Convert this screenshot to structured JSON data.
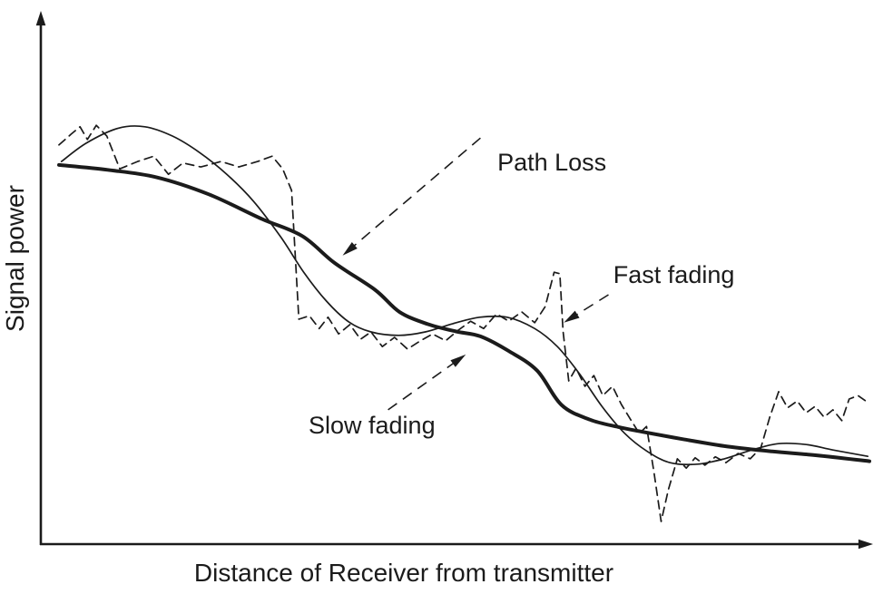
{
  "figure": {
    "background_color": "#ffffff",
    "line_color": "#1b1b1b"
  },
  "chart_data": {
    "type": "line",
    "title": "",
    "xlabel": "Distance of Receiver from transmitter",
    "ylabel": "Signal power",
    "x_range": [
      0,
      100
    ],
    "y_range": [
      0,
      100
    ],
    "axis_note": "conceptual sketch; axes have no tick labels, values estimated on 0-100 arbitrary scale",
    "grid": false,
    "legend": "none (curves identified by dashed-arrow annotations)",
    "line_color": "#1b1b1b",
    "series": [
      {
        "name": "Path Loss",
        "style": "solid",
        "width": "thick",
        "smooth": true,
        "points": [
          [
            0,
            76.5
          ],
          [
            6,
            75.5
          ],
          [
            12,
            74
          ],
          [
            18.5,
            70.5
          ],
          [
            25,
            65.5
          ],
          [
            30,
            62
          ],
          [
            34,
            56.5
          ],
          [
            39,
            51
          ],
          [
            42,
            46.5
          ],
          [
            45.5,
            44
          ],
          [
            49,
            42.5
          ],
          [
            52,
            41.5
          ],
          [
            55.5,
            38.5
          ],
          [
            59,
            34.5
          ],
          [
            62,
            27.5
          ],
          [
            65.5,
            24.5
          ],
          [
            69,
            23
          ],
          [
            72,
            22
          ],
          [
            77,
            20.5
          ],
          [
            82.5,
            19
          ],
          [
            88,
            18
          ],
          [
            93.5,
            17.2
          ],
          [
            100,
            16
          ]
        ]
      },
      {
        "name": "Slow fading",
        "style": "solid",
        "width": "thin",
        "smooth": true,
        "points": [
          [
            0.3,
            77.2
          ],
          [
            3.4,
            81
          ],
          [
            7.3,
            84
          ],
          [
            10.6,
            84.3
          ],
          [
            14,
            82.4
          ],
          [
            17.3,
            79.1
          ],
          [
            20.7,
            74.6
          ],
          [
            24,
            69.1
          ],
          [
            27.4,
            61.7
          ],
          [
            30.2,
            54.6
          ],
          [
            33,
            48.7
          ],
          [
            35.8,
            44.4
          ],
          [
            38.5,
            42.4
          ],
          [
            41.9,
            41.7
          ],
          [
            45.2,
            42.4
          ],
          [
            48.6,
            44.1
          ],
          [
            51.9,
            45.4
          ],
          [
            55.3,
            45.4
          ],
          [
            58.7,
            43.1
          ],
          [
            61.5,
            39.4
          ],
          [
            64.2,
            33.9
          ],
          [
            67,
            27.2
          ],
          [
            69.8,
            21.7
          ],
          [
            72.6,
            18
          ],
          [
            75.4,
            15.7
          ],
          [
            78.8,
            15.4
          ],
          [
            82.1,
            16.5
          ],
          [
            85.5,
            18.3
          ],
          [
            88.8,
            19.6
          ],
          [
            92.2,
            19.4
          ],
          [
            95.5,
            18.3
          ],
          [
            99.8,
            17
          ]
        ]
      },
      {
        "name": "Fast fading",
        "style": "dashed",
        "width": "thin",
        "smooth": false,
        "points": [
          [
            0,
            80.6
          ],
          [
            1.5,
            82.8
          ],
          [
            2.6,
            84.3
          ],
          [
            3.5,
            81.7
          ],
          [
            4.6,
            84.6
          ],
          [
            5.9,
            82.4
          ],
          [
            7.5,
            75.7
          ],
          [
            9.7,
            77.2
          ],
          [
            11.7,
            78.3
          ],
          [
            13.5,
            74.6
          ],
          [
            15.3,
            76.9
          ],
          [
            17.5,
            76.1
          ],
          [
            20,
            77.2
          ],
          [
            22.2,
            76.1
          ],
          [
            24.5,
            77.2
          ],
          [
            26.3,
            78.3
          ],
          [
            27.6,
            75.7
          ],
          [
            28.7,
            71.3
          ],
          [
            29.6,
            45
          ],
          [
            30.9,
            45.7
          ],
          [
            32.1,
            43.1
          ],
          [
            33.2,
            45.4
          ],
          [
            34.5,
            42
          ],
          [
            35.9,
            43.9
          ],
          [
            37.2,
            40.9
          ],
          [
            38.5,
            42.4
          ],
          [
            39.9,
            39.4
          ],
          [
            41.4,
            41.3
          ],
          [
            43,
            38.9
          ],
          [
            44.6,
            40.6
          ],
          [
            46.1,
            42
          ],
          [
            47.7,
            40.6
          ],
          [
            49.3,
            42.8
          ],
          [
            50.8,
            44.6
          ],
          [
            52.4,
            43.1
          ],
          [
            54,
            46.1
          ],
          [
            55.5,
            44.6
          ],
          [
            57.1,
            46.5
          ],
          [
            58.7,
            44.3
          ],
          [
            60,
            47.6
          ],
          [
            61.1,
            54.6
          ],
          [
            61.8,
            54.3
          ],
          [
            62.2,
            42.6
          ],
          [
            62.9,
            32.4
          ],
          [
            63.8,
            35
          ],
          [
            64.9,
            31.3
          ],
          [
            66,
            33.5
          ],
          [
            67.1,
            29.4
          ],
          [
            68.3,
            31.3
          ],
          [
            69.4,
            27.6
          ],
          [
            70.5,
            24.6
          ],
          [
            71.6,
            21.7
          ],
          [
            72.5,
            23.1
          ],
          [
            73.4,
            13.9
          ],
          [
            74.3,
            3.7
          ],
          [
            75.2,
            10.2
          ],
          [
            76.3,
            16.5
          ],
          [
            77.4,
            14.6
          ],
          [
            78.5,
            16.7
          ],
          [
            79.7,
            15.2
          ],
          [
            81,
            16.9
          ],
          [
            82.3,
            15.7
          ],
          [
            83.8,
            17.6
          ],
          [
            85.3,
            16.5
          ],
          [
            86.6,
            18.7
          ],
          [
            87.7,
            25
          ],
          [
            88.8,
            30.2
          ],
          [
            89.9,
            26.9
          ],
          [
            91.1,
            28.3
          ],
          [
            92.2,
            25.9
          ],
          [
            93.3,
            27.2
          ],
          [
            94.4,
            25
          ],
          [
            95.5,
            26.5
          ],
          [
            96.6,
            24.3
          ],
          [
            97.5,
            28.7
          ],
          [
            98.6,
            29.4
          ],
          [
            99.8,
            28
          ]
        ]
      }
    ],
    "annotations": [
      {
        "text": "Path Loss",
        "text_pos": [
          54.1,
          75.4
        ],
        "anchor": "start",
        "arrow_from": [
          52,
          82
        ],
        "arrow_to": [
          35,
          58
        ]
      },
      {
        "text": "Fast fading",
        "text_pos": [
          68.4,
          52.4
        ],
        "anchor": "start",
        "arrow_from": [
          67.8,
          50
        ],
        "arrow_to": [
          62.3,
          44.3
        ]
      },
      {
        "text": "Slow fading",
        "text_pos": [
          30.8,
          21.7
        ],
        "anchor": "start",
        "arrow_from": [
          40.6,
          26.5
        ],
        "arrow_to": [
          50.2,
          37.8
        ]
      }
    ]
  }
}
